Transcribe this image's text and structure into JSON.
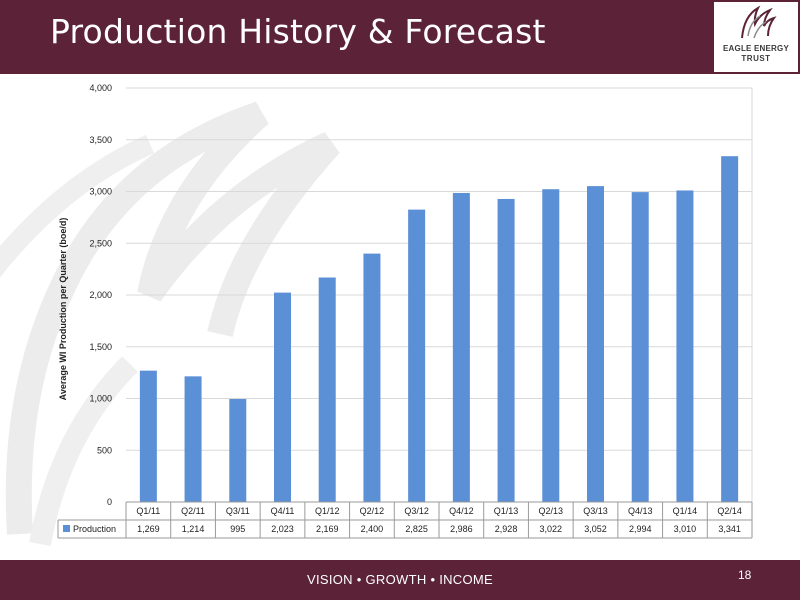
{
  "slide": {
    "title": "Production History & Forecast",
    "tagline": "VISION • GROWTH • INCOME",
    "page_number": "18",
    "logo": {
      "line1": "EAGLE ENERGY",
      "line2": "TRUST"
    },
    "colors": {
      "brand": "#5c2338",
      "bar": "#5b8fd6"
    }
  },
  "chart_data": {
    "type": "bar",
    "categories": [
      "Q1/11",
      "Q2/11",
      "Q3/11",
      "Q4/11",
      "Q1/12",
      "Q2/12",
      "Q3/12",
      "Q4/12",
      "Q1/13",
      "Q2/13",
      "Q3/13",
      "Q4/13",
      "Q1/14",
      "Q2/14"
    ],
    "series": [
      {
        "name": "Production",
        "values": [
          1269,
          1214,
          995,
          2023,
          2169,
          2400,
          2825,
          2986,
          2928,
          3022,
          3052,
          2994,
          3010,
          3341
        ]
      }
    ],
    "table_values": [
      "1,269",
      "1,214",
      "995",
      "2,023",
      "2,169",
      "2,400",
      "2,825",
      "2,986",
      "2,928",
      "3,022",
      "3,052",
      "2,994",
      "3,010",
      "3,341"
    ],
    "ylabel": "Average WI Production per Quarter (boe/d)",
    "ylim": [
      0,
      4000
    ],
    "yticks": [
      0,
      500,
      1000,
      1500,
      2000,
      2500,
      3000,
      3500,
      4000
    ],
    "ytick_labels": [
      "0",
      "500",
      "1,000",
      "1,500",
      "2,000",
      "2,500",
      "3,000",
      "3,500",
      "4,000"
    ],
    "grid": "horizontal",
    "legend": "data-table"
  }
}
